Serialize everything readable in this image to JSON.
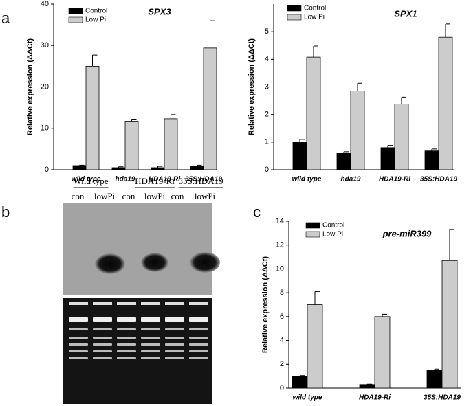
{
  "panels": [
    "a",
    "b",
    "c"
  ],
  "gel": {
    "groups": [
      "Wild type",
      "HDA19-Ri",
      "35S:HDA19"
    ],
    "lanes": [
      "con",
      "lowPi",
      "con",
      "lowPi",
      "con",
      "lowPi"
    ]
  },
  "chart_data": [
    {
      "type": "bar",
      "title": "SPX3",
      "y_label": "Relative expression (ΔΔCt)",
      "categories": [
        "wild type",
        "hda19",
        "HDA19-Ri",
        "35S:HDA19"
      ],
      "series": [
        {
          "name": "Control",
          "color": "#000000",
          "values": [
            1.0,
            0.5,
            0.5,
            0.8
          ],
          "errors": [
            0.1,
            0.2,
            0.3,
            0.3
          ]
        },
        {
          "name": "Low Pi",
          "color": "#cccccc",
          "values": [
            25.0,
            11.7,
            12.3,
            29.4
          ],
          "errors": [
            2.7,
            0.5,
            1.0,
            6.6
          ]
        }
      ],
      "ylim": [
        0,
        40
      ],
      "yticks": [
        0,
        10,
        20,
        30,
        40
      ]
    },
    {
      "type": "bar",
      "title": "SPX1",
      "y_label": "Relative expression (ΔΔCt)",
      "categories": [
        "wild type",
        "hda19",
        "HDA19-Ri",
        "35S:HDA19"
      ],
      "series": [
        {
          "name": "Control",
          "color": "#000000",
          "values": [
            1.0,
            0.6,
            0.8,
            0.68
          ],
          "errors": [
            0.1,
            0.05,
            0.08,
            0.07
          ]
        },
        {
          "name": "Low Pi",
          "color": "#cccccc",
          "values": [
            4.08,
            2.85,
            2.38,
            4.8
          ],
          "errors": [
            0.4,
            0.28,
            0.25,
            0.48
          ]
        }
      ],
      "ylim": [
        0,
        6
      ],
      "yticks": [
        0,
        1,
        2,
        3,
        4,
        5
      ]
    },
    {
      "type": "bar",
      "title": "pre-miR399",
      "y_label": "Relative expression (ΔΔCt)",
      "categories": [
        "wild type",
        "HDA19-Ri",
        "35S:HDA19"
      ],
      "series": [
        {
          "name": "Control",
          "color": "#000000",
          "values": [
            1.0,
            0.3,
            1.5
          ],
          "errors": [
            0.05,
            0.03,
            0.1
          ]
        },
        {
          "name": "Low Pi",
          "color": "#cccccc",
          "values": [
            7.0,
            6.0,
            10.7
          ],
          "errors": [
            1.1,
            0.2,
            2.6
          ]
        }
      ],
      "ylim": [
        0,
        14
      ],
      "yticks": [
        0,
        2,
        4,
        6,
        8,
        10,
        12,
        14
      ]
    }
  ]
}
